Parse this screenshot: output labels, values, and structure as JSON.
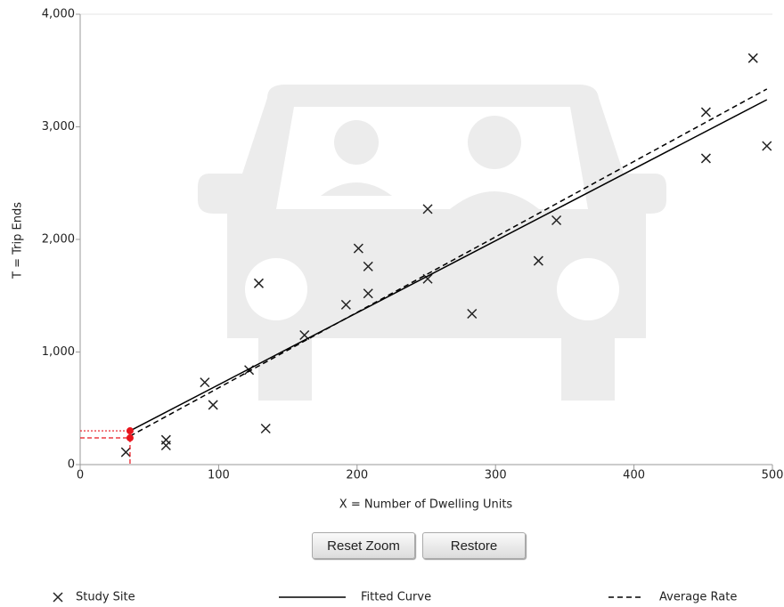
{
  "chart_data": {
    "type": "scatter",
    "x_label": "X = Number of Dwelling Units",
    "y_label": "T = Trip Ends",
    "xlim": [
      0,
      500
    ],
    "ylim": [
      0,
      4000
    ],
    "xticks": [
      0,
      100,
      200,
      300,
      400,
      500
    ],
    "yticks": [
      0,
      {
        "value": 1000,
        "label": "1,000"
      },
      {
        "value": 2000,
        "label": "2,000"
      },
      {
        "value": 3000,
        "label": "3,000"
      },
      {
        "value": 4000,
        "label": "4,000"
      }
    ],
    "grid": false,
    "series": [
      {
        "name": "Study Site",
        "marker": "x",
        "color": "#222",
        "x": [
          33,
          62,
          62,
          90,
          96,
          122,
          129,
          134,
          162,
          192,
          201,
          208,
          208,
          251,
          251,
          283,
          331,
          344,
          452,
          452,
          486,
          496
        ],
        "values": [
          110,
          220,
          170,
          730,
          530,
          840,
          1610,
          320,
          1150,
          1420,
          1920,
          1760,
          1520,
          2270,
          1650,
          1340,
          1810,
          2170,
          3130,
          2720,
          3610,
          2830
        ]
      },
      {
        "name": "Fitted Curve",
        "marker": "line",
        "dash": "solid",
        "color": "#000",
        "x": [
          36,
          496
        ],
        "values": [
          300,
          3241
        ]
      },
      {
        "name": "Average Rate",
        "marker": "line",
        "dash": "dashed",
        "color": "#000",
        "x": [
          36,
          496
        ],
        "values": [
          253,
          3336
        ]
      }
    ],
    "highlight": {
      "x": 36,
      "values": [
        300,
        237
      ],
      "color": "#e8141c"
    }
  },
  "buttons": [
    "Reset Zoom",
    "Restore"
  ]
}
